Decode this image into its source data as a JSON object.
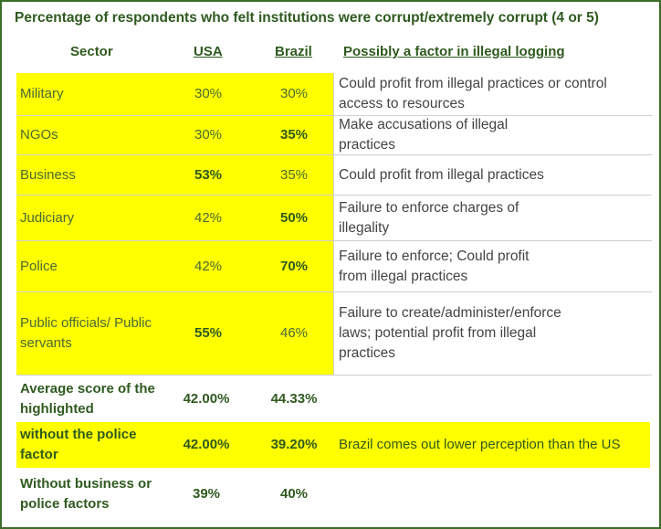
{
  "title": "Percentage of respondents who felt institutions were corrupt/extremely corrupt (4 or 5)",
  "columns": {
    "sector": "Sector",
    "usa": "USA",
    "brazil": "Brazil",
    "factor": "Possibly a factor in illegal logging"
  },
  "rows": [
    {
      "sector": "Military",
      "usa": "30%",
      "brazil": "30%",
      "factor": "Could profit from illegal practices or control access to resources"
    },
    {
      "sector": "NGOs",
      "usa": "30%",
      "brazil": "35%",
      "factor": "Make accusations of illegal practices"
    },
    {
      "sector": "Business",
      "usa": "53%",
      "brazil": "35%",
      "factor": "Could profit from illegal practices"
    },
    {
      "sector": "Judiciary",
      "usa": "42%",
      "brazil": "50%",
      "factor": "Failure to enforce charges of illegality"
    },
    {
      "sector": "Police",
      "usa": "42%",
      "brazil": "70%",
      "factor": "Failure to enforce; Could profit from illegal practices"
    },
    {
      "sector": "Public officials/ Public servants",
      "usa": "55%",
      "brazil": "46%",
      "factor": "Failure to create/administer/enforce laws; potential profit from illegal practices"
    }
  ],
  "summary": [
    {
      "label": "Average score of the highlighted",
      "usa": "42.00%",
      "brazil": "44.33%",
      "note": ""
    },
    {
      "label": "without the police factor",
      "usa": "42.00%",
      "brazil": "39.20%",
      "note": "Brazil comes out lower perception than the US"
    },
    {
      "label": "Without business or police factors",
      "usa": "39%",
      "brazil": "40%",
      "note": ""
    }
  ],
  "colors": {
    "highlight": "#ffff00",
    "header_text": "#2f5a1f",
    "border": "#3b6e2a"
  }
}
